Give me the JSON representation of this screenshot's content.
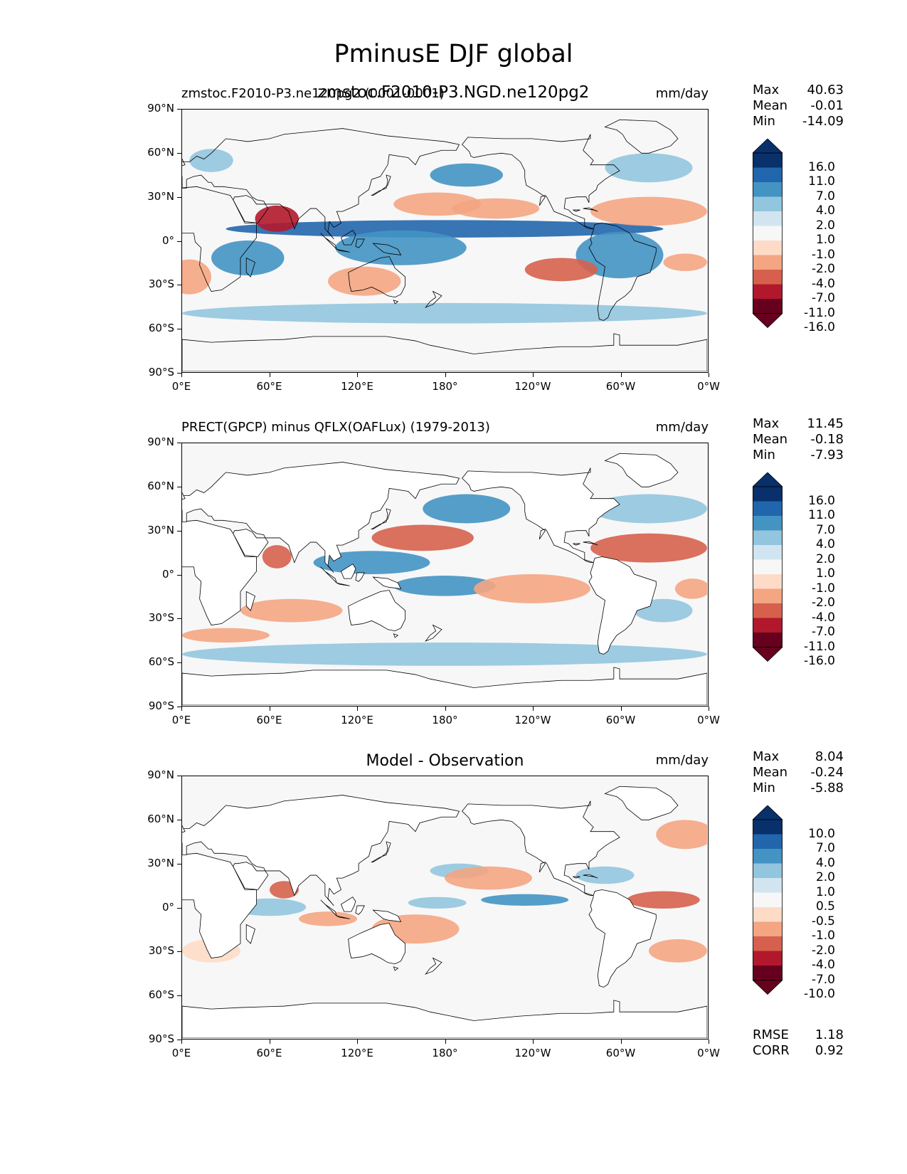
{
  "title": "PminusE DJF global",
  "overlay_title": "zmstoc.F2010-P3.NGD.ne120pg2",
  "axes": {
    "y_labels": [
      "90°N",
      "60°N",
      "30°N",
      "0°",
      "30°S",
      "60°S",
      "90°S"
    ],
    "x_labels": [
      "0°E",
      "60°E",
      "120°E",
      "180°",
      "120°W",
      "60°W",
      "0°W"
    ]
  },
  "colors": {
    "blues": [
      "#08306b",
      "#2166ac",
      "#4393c3",
      "#92c5de",
      "#d1e5f0"
    ],
    "neutral": "#f7f7f7",
    "reds": [
      "#fddbc7",
      "#f4a582",
      "#d6604d",
      "#b2182b",
      "#67001f"
    ],
    "land": "#ffffff",
    "outline": "#000000"
  },
  "panels": [
    {
      "title_left": "zmstoc.F2010-P3.ne120pg2 (0001-0001)",
      "title_center": "",
      "units": "mm/day",
      "stats": [
        {
          "label": "Max",
          "value": "40.63"
        },
        {
          "label": "Mean",
          "value": "-0.01"
        },
        {
          "label": "Min",
          "value": "-14.09"
        }
      ],
      "colorbar_levels": [
        "16.0",
        "11.0",
        "7.0",
        "4.0",
        "2.0",
        "1.0",
        "-1.0",
        "-2.0",
        "-4.0",
        "-7.0",
        "-11.0",
        "-16.0"
      ],
      "metrics": []
    },
    {
      "title_left": "PRECT(GPCP) minus QFLX(OAFLux) (1979-2013)",
      "title_center": "",
      "units": "mm/day",
      "stats": [
        {
          "label": "Max",
          "value": "11.45"
        },
        {
          "label": "Mean",
          "value": "-0.18"
        },
        {
          "label": "Min",
          "value": "-7.93"
        }
      ],
      "colorbar_levels": [
        "16.0",
        "11.0",
        "7.0",
        "4.0",
        "2.0",
        "1.0",
        "-1.0",
        "-2.0",
        "-4.0",
        "-7.0",
        "-11.0",
        "-16.0"
      ],
      "metrics": []
    },
    {
      "title_left": "",
      "title_center": "Model - Observation",
      "units": "mm/day",
      "stats": [
        {
          "label": "Max",
          "value": "8.04"
        },
        {
          "label": "Mean",
          "value": "-0.24"
        },
        {
          "label": "Min",
          "value": "-5.88"
        }
      ],
      "colorbar_levels": [
        "10.0",
        "7.0",
        "4.0",
        "2.0",
        "1.0",
        "0.5",
        "-0.5",
        "-1.0",
        "-2.0",
        "-4.0",
        "-7.0",
        "-10.0"
      ],
      "metrics": [
        {
          "label": "RMSE",
          "value": "1.18"
        },
        {
          "label": "CORR",
          "value": "0.92"
        }
      ]
    }
  ]
}
